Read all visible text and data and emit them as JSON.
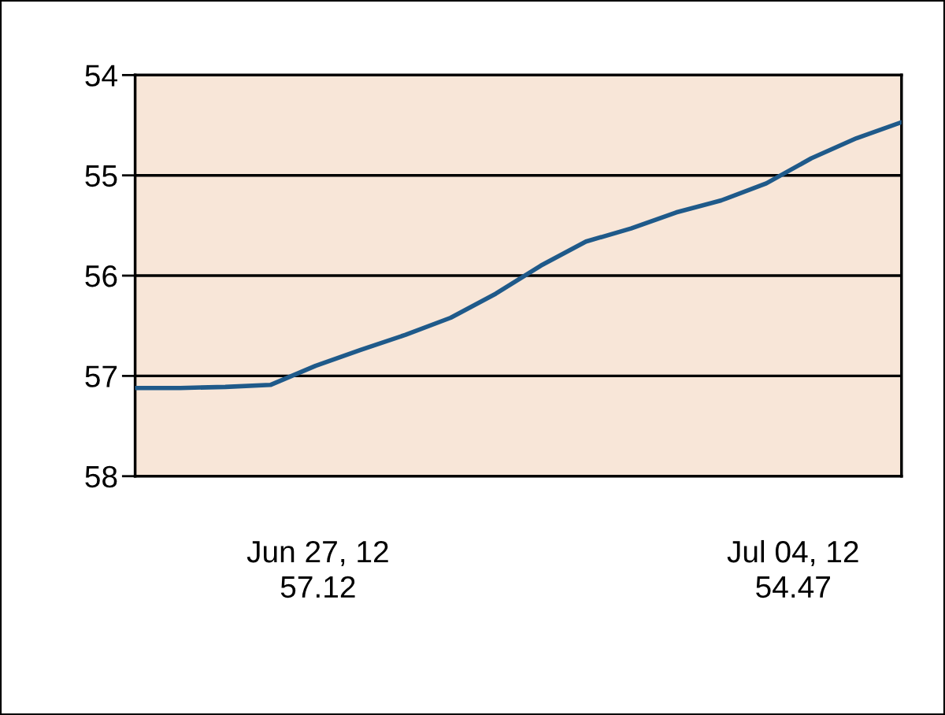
{
  "chart_data": {
    "type": "line",
    "categories": [
      null,
      null,
      null,
      null,
      null,
      null,
      null,
      null,
      null,
      null,
      null,
      null,
      null,
      null,
      null,
      null,
      null,
      null
    ],
    "series": [
      {
        "color": "#1f5a8a",
        "values": [
          57.12,
          57.12,
          57.11,
          57.09,
          56.9,
          56.74,
          56.59,
          56.42,
          56.18,
          55.9,
          55.66,
          55.53,
          55.37,
          55.25,
          55.08,
          54.83,
          54.63,
          54.47
        ]
      }
    ],
    "ylim": [
      58,
      54
    ],
    "yticks": [
      54,
      55,
      56,
      57,
      58
    ],
    "grid": "y",
    "marker": "none",
    "line_style": "solid",
    "annotations": [
      "Jun 27, 12\n57.12",
      "Jul 04, 12\n54.47"
    ]
  }
}
